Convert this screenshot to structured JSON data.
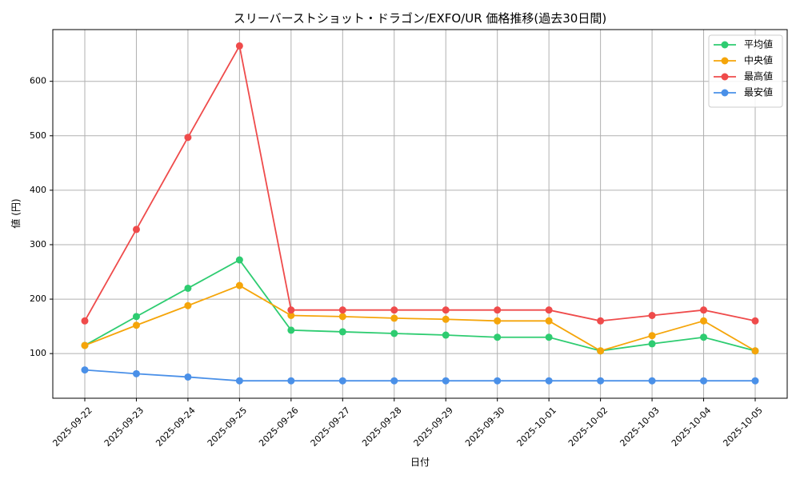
{
  "chart_data": {
    "type": "line",
    "title": "スリーバーストショット・ドラゴン/EXFO/UR 価格推移(過去30日間)",
    "xlabel": "日付",
    "ylabel": "値 (円)",
    "ylim": [
      18,
      695
    ],
    "yticks": [
      100,
      200,
      300,
      400,
      500,
      600
    ],
    "grid": true,
    "legend_position": "top-right",
    "categories": [
      "2025-09-22",
      "2025-09-23",
      "2025-09-24",
      "2025-09-25",
      "2025-09-26",
      "2025-09-27",
      "2025-09-28",
      "2025-09-29",
      "2025-09-30",
      "2025-10-01",
      "2025-10-02",
      "2025-10-03",
      "2025-10-04",
      "2025-10-05"
    ],
    "series": [
      {
        "name": "平均値",
        "color": "#2ecc71",
        "values": [
          115,
          168,
          220,
          272,
          143,
          140,
          137,
          134,
          130,
          130,
          105,
          118,
          130,
          105
        ]
      },
      {
        "name": "中央値",
        "color": "#f5a50a",
        "values": [
          115,
          152,
          188,
          225,
          170,
          168,
          165,
          163,
          160,
          160,
          105,
          133,
          160,
          105
        ]
      },
      {
        "name": "最高値",
        "color": "#ef4b4b",
        "values": [
          160,
          328,
          497,
          665,
          180,
          180,
          180,
          180,
          180,
          180,
          160,
          170,
          180,
          160
        ]
      },
      {
        "name": "最安値",
        "color": "#4a90e8",
        "values": [
          70,
          63,
          57,
          50,
          50,
          50,
          50,
          50,
          50,
          50,
          50,
          50,
          50,
          50
        ]
      }
    ]
  }
}
